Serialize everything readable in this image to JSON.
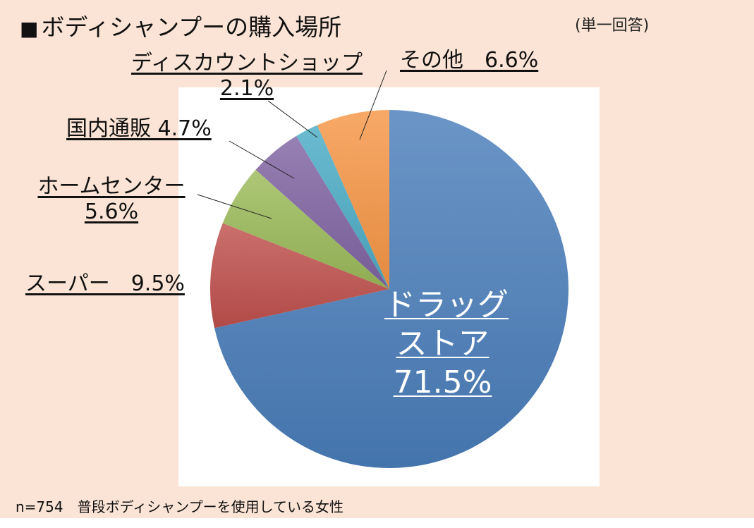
{
  "title": "ボディシャンプーの購入場所",
  "title_marker": "■",
  "note": "(単一回答)",
  "footnote": "n=754　普段ボディシャンプーを使用している女性",
  "chart_data": {
    "type": "pie",
    "title": "ボディシャンプーの購入場所",
    "unit": "%",
    "slices": [
      {
        "name": "ドラッグストア",
        "value": 71.5,
        "label_lines": [
          "ドラッグ",
          "ストア",
          "71.5%"
        ],
        "color": "#4a7ebb"
      },
      {
        "name": "スーパー",
        "value": 9.5,
        "label_lines": [
          "スーパー　9.5%"
        ],
        "color": "#c0504d"
      },
      {
        "name": "ホームセンター",
        "value": 5.6,
        "label_lines": [
          "ホームセンター",
          "5.6%"
        ],
        "color": "#9bbb59"
      },
      {
        "name": "国内通販",
        "value": 4.7,
        "label_lines": [
          "国内通販 4.7%"
        ],
        "color": "#8064a2"
      },
      {
        "name": "ディスカウントショップ",
        "value": 2.1,
        "label_lines": [
          "ディスカウントショップ",
          "2.1%"
        ],
        "color": "#4bacc6"
      },
      {
        "name": "その他",
        "value": 6.6,
        "label_lines": [
          "その他　6.6%"
        ],
        "color": "#f79646"
      }
    ]
  }
}
